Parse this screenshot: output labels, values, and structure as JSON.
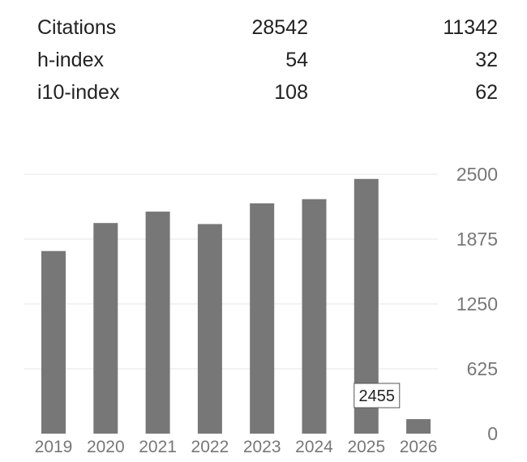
{
  "stats": {
    "rows": [
      {
        "label": "Citations",
        "all": "28542",
        "recent": "11342"
      },
      {
        "label": "h-index",
        "all": "54",
        "recent": "32"
      },
      {
        "label": "i10-index",
        "all": "108",
        "recent": "62"
      }
    ]
  },
  "chart_data": {
    "type": "bar",
    "title": "",
    "xlabel": "",
    "ylabel": "",
    "categories": [
      "2019",
      "2020",
      "2021",
      "2022",
      "2023",
      "2024",
      "2025",
      "2026"
    ],
    "values": [
      1760,
      2030,
      2140,
      2020,
      2220,
      2260,
      2455,
      140
    ],
    "ylim": [
      0,
      2500
    ],
    "yticks": [
      "0",
      "625",
      "1250",
      "1875",
      "2500"
    ],
    "tooltip": {
      "category": "2025",
      "value": "2455"
    },
    "grid": true,
    "bar_color": "#777777",
    "grid_color": "#e6e6e6",
    "tick_color": "#777777"
  }
}
